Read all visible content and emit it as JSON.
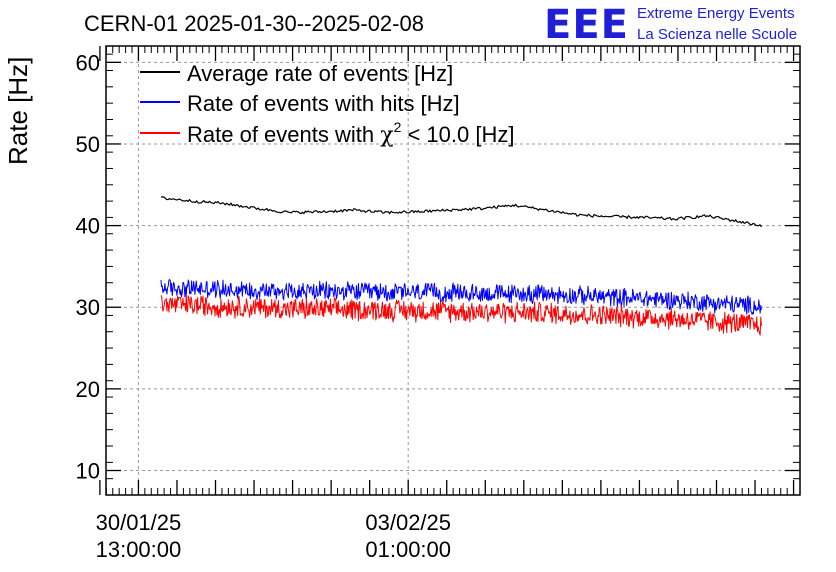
{
  "chart_data": {
    "type": "line",
    "title": "CERN-01 2025-01-30--2025-02-08",
    "ylabel": "Rate [Hz]",
    "xlabel": "",
    "ylim": [
      7,
      62
    ],
    "yticks": [
      10,
      20,
      30,
      40,
      50,
      60
    ],
    "xticks": [
      {
        "date": "30/01/25",
        "time": "13:00:00"
      },
      {
        "date": "03/02/25",
        "time": "01:00:00"
      }
    ],
    "grid": true,
    "legend_position": "top-left",
    "x_unit": "hours since 2025-01-30 00:00:00",
    "xlim": [
      2.9,
      219.0
    ],
    "series": [
      {
        "name": "Average rate of events [Hz]",
        "color": "#000000",
        "style": "smooth",
        "x": [
          20,
          30,
          40,
          50,
          60,
          70,
          80,
          90,
          100,
          110,
          120,
          130,
          140,
          150,
          160,
          170,
          180,
          190,
          200,
          207
        ],
        "values": [
          43.4,
          43.0,
          42.7,
          42.1,
          41.6,
          41.7,
          41.9,
          41.6,
          41.7,
          41.9,
          42.1,
          42.5,
          41.9,
          41.3,
          41.1,
          41.0,
          40.8,
          41.2,
          40.5,
          40.0
        ]
      },
      {
        "name": "Rate of events with hits [Hz]",
        "color": "#0000ff",
        "style": "noisy",
        "x": [
          20,
          60,
          100,
          140,
          180,
          207
        ],
        "values": [
          32.4,
          32.0,
          31.8,
          31.6,
          30.9,
          30.1
        ],
        "spread": 1.3
      },
      {
        "name": "Rate of events with χ² < 10.0 [Hz]",
        "name_parts": [
          "Rate of events with ",
          "χ",
          "2",
          " < 10.0 [Hz]"
        ],
        "color": "#ff0000",
        "style": "noisy",
        "x": [
          20,
          60,
          100,
          140,
          180,
          207
        ],
        "values": [
          30.4,
          29.8,
          29.6,
          29.3,
          28.6,
          27.8
        ],
        "spread": 1.5
      }
    ]
  },
  "logo": {
    "mark": "EEE",
    "line1": "Extreme Energy Events",
    "line2": "La Scienza nelle Scuole"
  }
}
